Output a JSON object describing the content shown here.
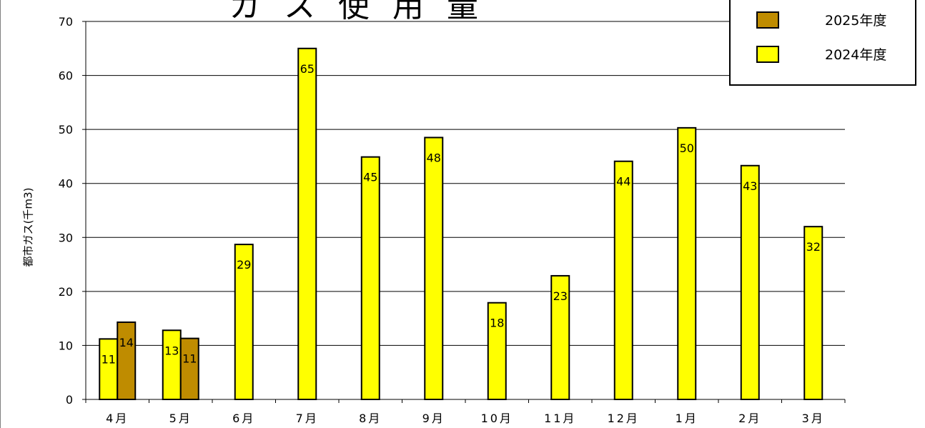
{
  "chart_data": {
    "type": "bar",
    "title": "ガス使用量",
    "ylabel": "都市ガス(千m3)",
    "xlabel": "",
    "ylim": [
      0,
      70
    ],
    "yticks": [
      0,
      10,
      20,
      30,
      40,
      50,
      60,
      70
    ],
    "grid": true,
    "legend_position": "top-right",
    "categories": [
      "4月",
      "5月",
      "6月",
      "7月",
      "8月",
      "9月",
      "10月",
      "11月",
      "12月",
      "1月",
      "2月",
      "3月"
    ],
    "series": [
      {
        "name": "2024年度",
        "color": "#ffff00",
        "values": [
          11.2,
          12.8,
          28.7,
          65.0,
          44.9,
          48.5,
          17.9,
          22.9,
          44.1,
          50.3,
          43.3,
          32.0
        ],
        "labels": [
          "11",
          "13",
          "29",
          "65",
          "45",
          "48",
          "18",
          "23",
          "44",
          "50",
          "43",
          "32"
        ]
      },
      {
        "name": "2025年度",
        "color": "#bf8c00",
        "values": [
          14.3,
          11.3,
          null,
          null,
          null,
          null,
          null,
          null,
          null,
          null,
          null,
          null
        ],
        "labels": [
          "14",
          "11",
          "",
          "",
          "",
          "",
          "",
          "",
          "",
          "",
          "",
          ""
        ]
      }
    ],
    "legend_order": [
      "2025年度",
      "2024年度"
    ]
  }
}
